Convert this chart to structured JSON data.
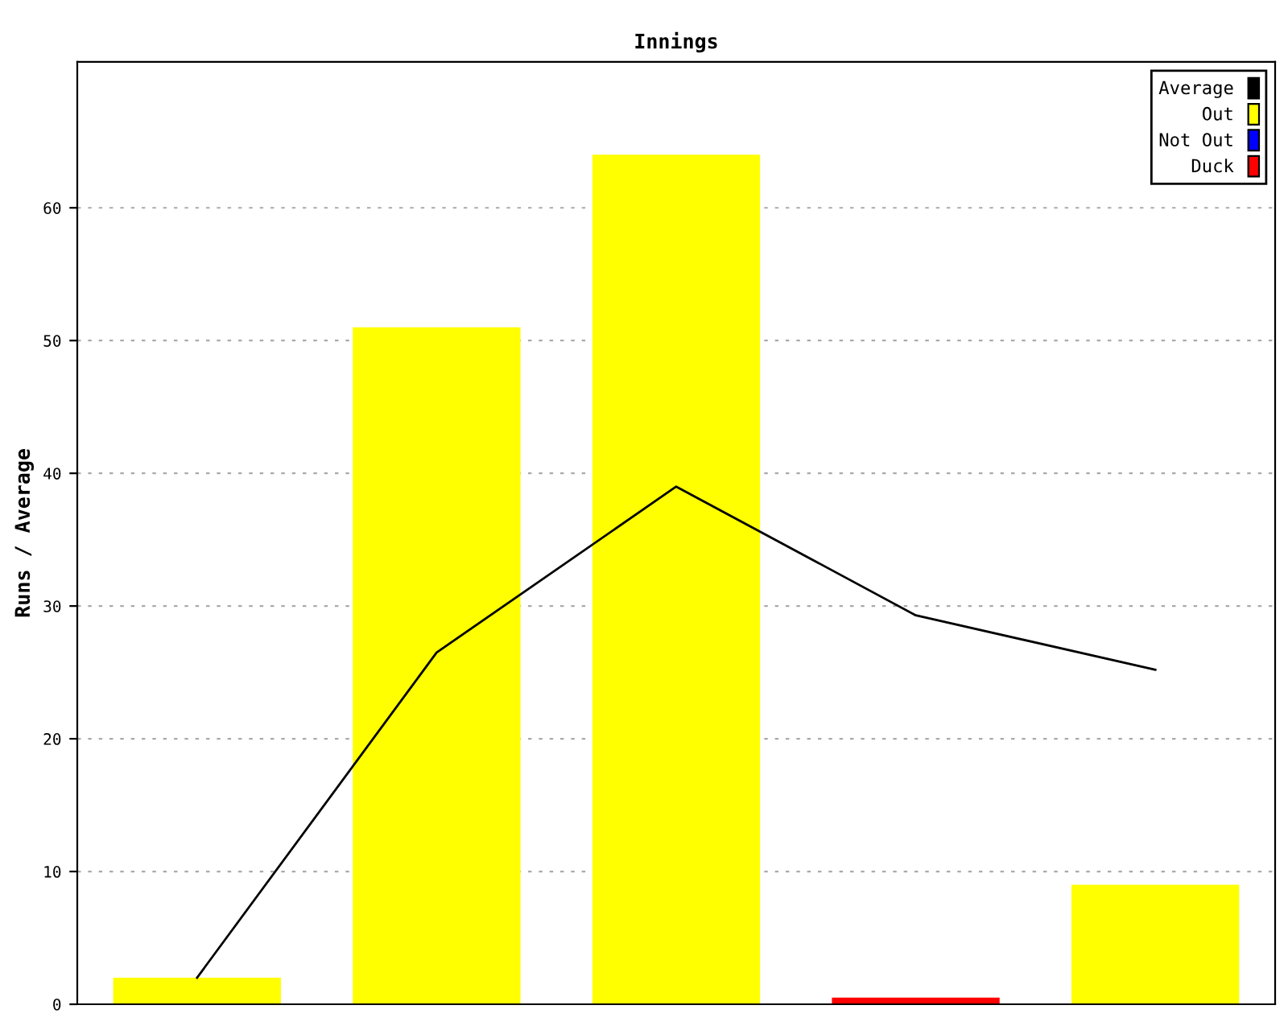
{
  "chart_data": {
    "type": "bar",
    "title": "Innings",
    "ylabel": "Runs / Average",
    "categories": [
      null,
      null,
      null,
      null,
      null
    ],
    "series": [
      {
        "name": "Average",
        "type": "line",
        "color": "#000000",
        "values": [
          2,
          26.5,
          39,
          29.3,
          25.2
        ]
      },
      {
        "name": "Out",
        "color": "#ffff00",
        "values": [
          2,
          51,
          64,
          null,
          9
        ]
      },
      {
        "name": "Not Out",
        "color": "#0000ff",
        "values": [
          null,
          null,
          null,
          null,
          null
        ]
      },
      {
        "name": "Duck",
        "color": "#ff0000",
        "values": [
          null,
          null,
          null,
          0.5,
          null
        ]
      }
    ],
    "ylim": [
      0,
      71
    ],
    "yticks": [
      0,
      10,
      20,
      30,
      40,
      50,
      60
    ],
    "grid": "y",
    "legend": "top right"
  }
}
